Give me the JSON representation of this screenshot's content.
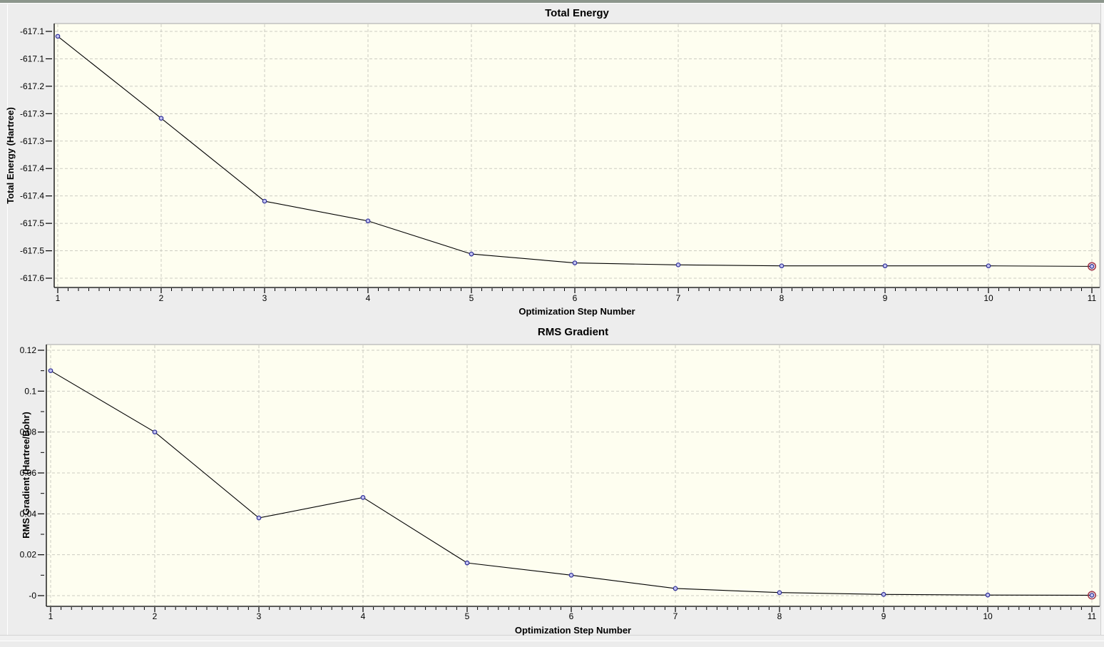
{
  "window": {
    "background": "#EDEDED",
    "top_edge_color": "#8C968C"
  },
  "chart_data": [
    {
      "type": "line",
      "title": "Total Energy",
      "xlabel": "Optimization Step Number",
      "ylabel": "Total Energy (Hartree)",
      "x": [
        1,
        2,
        3,
        4,
        5,
        6,
        7,
        8,
        9,
        10,
        11
      ],
      "values": [
        -617.11,
        -617.276,
        -617.444,
        -617.484,
        -617.551,
        -617.569,
        -617.573,
        -617.575,
        -617.575,
        -617.575,
        -617.576
      ],
      "x_tick_labels": [
        "1",
        "2",
        "3",
        "4",
        "5",
        "6",
        "7",
        "8",
        "9",
        "10",
        "11"
      ],
      "y_tick_labels": [
        "-617.1",
        "-617.1",
        "-617.2",
        "-617.3",
        "-617.3",
        "-617.4",
        "-617.4",
        "-617.5",
        "-617.5",
        "-617.6"
      ],
      "y_tick_top_value": -617.1,
      "y_tick_bottom_value": -617.6,
      "xlim": [
        1,
        11
      ],
      "ylim": [
        -617.6,
        -617.1
      ],
      "grid": true,
      "legend": "none",
      "x_minor_per_interval": 9,
      "y_minor_between_majors": false,
      "highlighted_step": 11
    },
    {
      "type": "line",
      "title": "RMS Gradient",
      "xlabel": "Optimization Step Number",
      "ylabel": "RMS Gradient (Hartree/Bohr)",
      "x": [
        1,
        2,
        3,
        4,
        5,
        6,
        7,
        8,
        9,
        10,
        11
      ],
      "values": [
        0.11,
        0.08,
        0.038,
        0.048,
        0.016,
        0.01,
        0.0035,
        0.0015,
        0.0006,
        0.0003,
        0.0002
      ],
      "x_tick_labels": [
        "1",
        "2",
        "3",
        "4",
        "5",
        "6",
        "7",
        "8",
        "9",
        "10",
        "11"
      ],
      "y_tick_labels": [
        "0.12",
        "0.1",
        "0.08",
        "0.06",
        "0.04",
        "0.02",
        "-0"
      ],
      "y_tick_top_value": 0.12,
      "y_tick_bottom_value": 0,
      "xlim": [
        1,
        11
      ],
      "ylim": [
        0,
        0.12
      ],
      "grid": true,
      "legend": "none",
      "x_minor_per_interval": 9,
      "y_minor_between_majors": true,
      "highlighted_step": 11
    }
  ],
  "colors": {
    "plot_background": "#FEFEF0",
    "grid_line": "#CCCCC2",
    "series_line": "#000000",
    "marker_fill": "#C4C4F2",
    "marker_stroke": "#35359A",
    "highlight_ring": "#A03048",
    "axis_line": "#000000",
    "plot_border": "#A8A8A8",
    "text": "#000000"
  }
}
